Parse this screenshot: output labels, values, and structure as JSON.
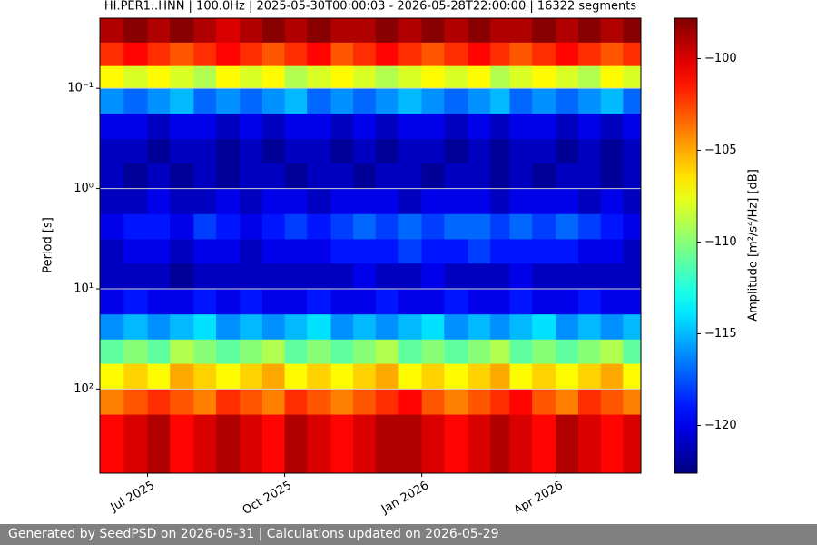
{
  "chart_data": {
    "type": "heatmap",
    "title": "HI.PER1..HNN | 100.0Hz | 2025-05-30T00:00:03 - 2026-05-28T22:00:00 | 16322 segments",
    "ylabel": "Period [s]",
    "colorbar_label": "Amplitude [m²/s⁴/Hz] [dB]",
    "colormap": "jet",
    "log_y": true,
    "y_inverted": true,
    "grid": true,
    "xlim": [
      "2025-05-30",
      "2026-05-28"
    ],
    "xticks": [
      {
        "value": "2025-07-01",
        "label": "Jul 2025"
      },
      {
        "value": "2025-10-01",
        "label": "Oct 2025"
      },
      {
        "value": "2026-01-01",
        "label": "Jan 2026"
      },
      {
        "value": "2026-04-01",
        "label": "Apr 2026"
      }
    ],
    "ylim": [
      0.02,
      690
    ],
    "yticks": [
      {
        "value": 0.1,
        "label": "10⁻¹"
      },
      {
        "value": 1,
        "label": "10⁰"
      },
      {
        "value": 10,
        "label": "10¹"
      },
      {
        "value": 100,
        "label": "10²"
      }
    ],
    "clim": [
      -122.6,
      -97.8
    ],
    "cticks": [
      {
        "value": -100,
        "label": "−100"
      },
      {
        "value": -105,
        "label": "−105"
      },
      {
        "value": -110,
        "label": "−110"
      },
      {
        "value": -115,
        "label": "−115"
      },
      {
        "value": -120,
        "label": "−120"
      }
    ],
    "x_edges": [
      "2025-05-30",
      "2025-06-15",
      "2025-07-01",
      "2025-07-16",
      "2025-08-01",
      "2025-08-16",
      "2025-09-01",
      "2025-09-16",
      "2025-10-01",
      "2025-10-16",
      "2025-11-01",
      "2025-11-16",
      "2025-12-01",
      "2025-12-16",
      "2026-01-01",
      "2026-01-16",
      "2026-02-01",
      "2026-02-16",
      "2026-03-01",
      "2026-03-16",
      "2026-04-01",
      "2026-04-16",
      "2026-05-01",
      "2026-05-16",
      "2026-05-28"
    ],
    "y_edges": [
      0.02,
      0.035,
      0.06,
      0.1,
      0.18,
      0.32,
      0.56,
      1,
      1.8,
      3.2,
      5.6,
      10,
      18,
      32,
      56,
      100,
      180,
      690
    ],
    "values": [
      [
        -99,
        -98,
        -99,
        -98,
        -99,
        -100,
        -99,
        -98,
        -99,
        -98,
        -99,
        -99,
        -98,
        -99,
        -98,
        -99,
        -98,
        -99,
        -99,
        -98,
        -99,
        -98,
        -99,
        -98
      ],
      [
        -102,
        -101,
        -102,
        -103,
        -102,
        -101,
        -102,
        -103,
        -102,
        -101,
        -103,
        -102,
        -101,
        -102,
        -103,
        -102,
        -101,
        -102,
        -103,
        -102,
        -101,
        -102,
        -103,
        -102
      ],
      [
        -107,
        -108,
        -107,
        -108,
        -109,
        -107,
        -108,
        -107,
        -109,
        -108,
        -107,
        -108,
        -109,
        -108,
        -107,
        -108,
        -107,
        -109,
        -108,
        -107,
        -108,
        -109,
        -107,
        -108
      ],
      [
        -116,
        -117,
        -116,
        -115,
        -117,
        -116,
        -117,
        -116,
        -115,
        -117,
        -116,
        -117,
        -116,
        -115,
        -116,
        -117,
        -116,
        -115,
        -117,
        -116,
        -117,
        -116,
        -115,
        -117
      ],
      [
        -120,
        -120,
        -121,
        -120,
        -120,
        -121,
        -120,
        -121,
        -120,
        -120,
        -121,
        -120,
        -121,
        -120,
        -120,
        -121,
        -120,
        -121,
        -120,
        -120,
        -121,
        -120,
        -121,
        -120
      ],
      [
        -121,
        -121,
        -122,
        -121,
        -121,
        -122,
        -121,
        -122,
        -121,
        -121,
        -122,
        -121,
        -122,
        -121,
        -121,
        -122,
        -121,
        -122,
        -121,
        -121,
        -122,
        -121,
        -122,
        -121
      ],
      [
        -121,
        -122,
        -121,
        -122,
        -121,
        -122,
        -121,
        -121,
        -122,
        -121,
        -121,
        -122,
        -121,
        -121,
        -122,
        -121,
        -121,
        -122,
        -121,
        -122,
        -121,
        -121,
        -122,
        -121
      ],
      [
        -121,
        -121,
        -120,
        -121,
        -121,
        -120,
        -121,
        -120,
        -120,
        -121,
        -120,
        -120,
        -120,
        -121,
        -120,
        -120,
        -120,
        -121,
        -120,
        -120,
        -120,
        -121,
        -120,
        -121
      ],
      [
        -120,
        -119,
        -119,
        -120,
        -118,
        -119,
        -120,
        -119,
        -118,
        -119,
        -118,
        -117,
        -118,
        -117,
        -118,
        -117,
        -117,
        -118,
        -117,
        -118,
        -117,
        -118,
        -119,
        -120
      ],
      [
        -121,
        -120,
        -120,
        -121,
        -120,
        -120,
        -121,
        -120,
        -120,
        -120,
        -119,
        -119,
        -119,
        -118,
        -119,
        -119,
        -118,
        -119,
        -119,
        -119,
        -119,
        -120,
        -120,
        -121
      ],
      [
        -121,
        -121,
        -121,
        -122,
        -121,
        -121,
        -121,
        -121,
        -121,
        -121,
        -121,
        -120,
        -121,
        -121,
        -120,
        -121,
        -121,
        -121,
        -120,
        -121,
        -121,
        -121,
        -121,
        -121
      ],
      [
        -120,
        -119,
        -120,
        -120,
        -119,
        -120,
        -119,
        -120,
        -120,
        -119,
        -120,
        -120,
        -119,
        -120,
        -120,
        -119,
        -120,
        -120,
        -119,
        -120,
        -120,
        -119,
        -120,
        -120
      ],
      [
        -116,
        -115,
        -116,
        -115,
        -114,
        -116,
        -115,
        -116,
        -115,
        -114,
        -116,
        -115,
        -116,
        -115,
        -114,
        -116,
        -115,
        -116,
        -115,
        -114,
        -116,
        -115,
        -116,
        -115
      ],
      [
        -111,
        -110,
        -111,
        -109,
        -110,
        -111,
        -110,
        -109,
        -111,
        -110,
        -111,
        -110,
        -109,
        -111,
        -110,
        -111,
        -110,
        -109,
        -111,
        -110,
        -111,
        -110,
        -109,
        -111
      ],
      [
        -107,
        -106,
        -107,
        -105,
        -106,
        -107,
        -106,
        -105,
        -107,
        -106,
        -107,
        -106,
        -105,
        -107,
        -106,
        -107,
        -106,
        -105,
        -107,
        -106,
        -107,
        -106,
        -105,
        -107
      ],
      [
        -104,
        -103,
        -102,
        -103,
        -104,
        -102,
        -103,
        -104,
        -102,
        -103,
        -104,
        -103,
        -102,
        -101,
        -103,
        -104,
        -103,
        -102,
        -101,
        -103,
        -104,
        -102,
        -103,
        -104
      ],
      [
        -101,
        -100,
        -99,
        -101,
        -100,
        -99,
        -100,
        -101,
        -99,
        -100,
        -101,
        -100,
        -99,
        -99,
        -100,
        -101,
        -100,
        -99,
        -100,
        -101,
        -99,
        -100,
        -101,
        -100
      ]
    ]
  },
  "footer": "Generated by SeedPSD on 2026-05-31 | Calculations updated on 2026-05-29"
}
